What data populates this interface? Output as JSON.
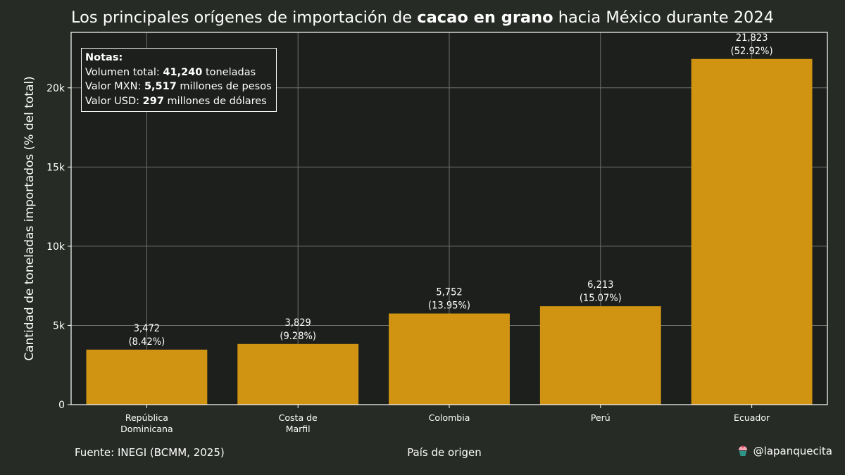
{
  "title": {
    "before": "Los principales orígenes de importación de ",
    "bold": "cacao en grano",
    "after": " hacia México durante 2024"
  },
  "notes": {
    "heading": "Notas:",
    "volume_label": "Volumen total: ",
    "volume_value": "41,240",
    "volume_unit": " toneladas",
    "mxn_label": "Valor MXN: ",
    "mxn_value": "5,517",
    "mxn_unit": " millones de pesos",
    "usd_label": "Valor USD: ",
    "usd_value": "297",
    "usd_unit": " millones de dólares"
  },
  "footer": {
    "source": "Fuente: INEGI (BCMM, 2025)",
    "credit": "@lapanquecita",
    "credit_icon": "cupcake-icon"
  },
  "colors": {
    "background": "#262b25",
    "plot_background": "#1c1f1b",
    "bar": "#d09412",
    "grid": "#6e706c",
    "text": "#ffffff"
  },
  "chart_data": {
    "type": "bar",
    "categories": [
      [
        "República",
        "Dominicana"
      ],
      [
        "Costa de",
        "Marfil"
      ],
      [
        "Colombia"
      ],
      [
        "Perú"
      ],
      [
        "Ecuador"
      ]
    ],
    "values": [
      3472,
      3829,
      5752,
      6213,
      21823
    ],
    "value_labels": [
      "3,472",
      "3,829",
      "5,752",
      "6,213",
      "21,823"
    ],
    "percent_labels": [
      "(8.42%)",
      "(9.28%)",
      "(13.95%)",
      "(15.07%)",
      "(52.92%)"
    ],
    "xlabel": "País de origen",
    "ylabel": "Cantidad de toneladas importados (% del total)",
    "ylim": [
      0,
      23500
    ],
    "yticks": [
      0,
      5000,
      10000,
      15000,
      20000
    ],
    "ytick_labels": [
      "0",
      "5k",
      "10k",
      "15k",
      "20k"
    ],
    "grid": true,
    "legend": "none"
  }
}
